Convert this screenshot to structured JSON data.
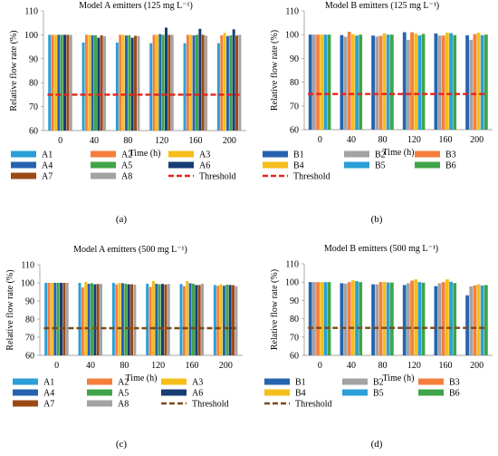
{
  "chart_data": [
    {
      "type": "bar",
      "panel_label": "(a)",
      "title": "Model A emitters (125 mg L⁻¹)",
      "xlabel": "Time (h)",
      "ylabel": "Relative flow rate (%)",
      "ylim": [
        60,
        110
      ],
      "yticks": [
        60,
        70,
        80,
        90,
        100,
        110
      ],
      "categories": [
        "0",
        "40",
        "80",
        "120",
        "160",
        "200"
      ],
      "threshold": {
        "name": "Threshold",
        "value": 75,
        "color": "#e8231b"
      },
      "series": [
        {
          "name": "A1",
          "color": "#2a9fd8",
          "values": [
            100,
            96.8,
            96.8,
            96.5,
            96.5,
            96.5
          ]
        },
        {
          "name": "A2",
          "color": "#f47f3c",
          "values": [
            100,
            100,
            100,
            100,
            100,
            99.8
          ]
        },
        {
          "name": "A3",
          "color": "#f6be1a",
          "values": [
            100,
            100,
            100,
            100,
            100,
            100.8
          ]
        },
        {
          "name": "A4",
          "color": "#2563b0",
          "values": [
            100,
            99.8,
            99.7,
            100.3,
            99.8,
            99.5
          ]
        },
        {
          "name": "A5",
          "color": "#40a548",
          "values": [
            100,
            99.8,
            99.8,
            100,
            100,
            99.8
          ]
        },
        {
          "name": "A6",
          "color": "#173c74",
          "values": [
            100,
            98.8,
            98.8,
            103,
            102.5,
            102.3
          ]
        },
        {
          "name": "A7",
          "color": "#9c4a15",
          "values": [
            100,
            99.8,
            99.6,
            100,
            100,
            99.7
          ]
        },
        {
          "name": "A8",
          "color": "#a3a3a3",
          "values": [
            100,
            99.4,
            99.5,
            100,
            99.6,
            100
          ]
        }
      ]
    },
    {
      "type": "bar",
      "panel_label": "(b)",
      "title": "Model B emitters (125 mg L⁻¹)",
      "xlabel": "Time (h)",
      "ylabel": "Relative flow rate (%)",
      "ylim": [
        60,
        110
      ],
      "yticks": [
        60,
        70,
        80,
        90,
        100,
        110
      ],
      "categories": [
        "0",
        "40",
        "80",
        "120",
        "160",
        "200"
      ],
      "threshold": {
        "name": "Threshold",
        "value": 75,
        "color": "#e8231b"
      },
      "series": [
        {
          "name": "B1",
          "color": "#2563b0",
          "values": [
            100,
            99.8,
            99.6,
            101,
            100.5,
            99.7
          ]
        },
        {
          "name": "B2",
          "color": "#a3a3a3",
          "values": [
            100,
            99.1,
            99.2,
            97.8,
            99.6,
            97.8
          ]
        },
        {
          "name": "B3",
          "color": "#f47f3c",
          "values": [
            100,
            101.2,
            99.5,
            101,
            99.6,
            100.2
          ]
        },
        {
          "name": "B4",
          "color": "#f6be1a",
          "values": [
            100,
            100.2,
            100.5,
            100.4,
            100.8,
            100.8
          ]
        },
        {
          "name": "B5",
          "color": "#2a9fd8",
          "values": [
            100,
            99.6,
            100,
            99.7,
            100.6,
            99.8
          ]
        },
        {
          "name": "B6",
          "color": "#40a548",
          "values": [
            100,
            100,
            100,
            100.3,
            99.8,
            100
          ]
        }
      ]
    },
    {
      "type": "bar",
      "panel_label": "(c)",
      "title": "Model A emitters (500 mg L⁻¹)",
      "xlabel": "Time (h)",
      "ylabel": "Relative flow rate (%)",
      "ylim": [
        60,
        110
      ],
      "yticks": [
        60,
        70,
        80,
        90,
        100,
        110
      ],
      "categories": [
        "0",
        "40",
        "80",
        "120",
        "160",
        "200"
      ],
      "threshold": {
        "name": "Threshold",
        "value": 75,
        "color": "#7a4a18"
      },
      "series": [
        {
          "name": "A1",
          "color": "#2a9fd8",
          "values": [
            100,
            100,
            100,
            99.5,
            99.4,
            98.8
          ]
        },
        {
          "name": "A2",
          "color": "#f47f3c",
          "values": [
            100,
            97.5,
            99.2,
            97.8,
            98.2,
            98.4
          ]
        },
        {
          "name": "A3",
          "color": "#f6be1a",
          "values": [
            100,
            100.5,
            100,
            101,
            101,
            99.2
          ]
        },
        {
          "name": "A4",
          "color": "#2563b0",
          "values": [
            100,
            99.5,
            99.8,
            99.5,
            99.8,
            98.4
          ]
        },
        {
          "name": "A5",
          "color": "#40a548",
          "values": [
            100,
            99.8,
            99.5,
            99.2,
            99.5,
            99
          ]
        },
        {
          "name": "A6",
          "color": "#173c74",
          "values": [
            100,
            99.2,
            99.2,
            99.4,
            98.8,
            98.8
          ]
        },
        {
          "name": "A7",
          "color": "#9c4a15",
          "values": [
            100,
            99.4,
            99.2,
            99.1,
            98.8,
            98.7
          ]
        },
        {
          "name": "A8",
          "color": "#a3a3a3",
          "values": [
            100,
            99.4,
            99,
            99.4,
            99.5,
            98.2
          ]
        }
      ]
    },
    {
      "type": "bar",
      "panel_label": "(d)",
      "title": "Model B emitters (500 mg L⁻¹)",
      "xlabel": "Time (h)",
      "ylabel": "Relative flow rate (%)",
      "ylim": [
        60,
        110
      ],
      "yticks": [
        60,
        70,
        80,
        90,
        100,
        110
      ],
      "categories": [
        "0",
        "40",
        "80",
        "120",
        "160",
        "200"
      ],
      "threshold": {
        "name": "Threshold",
        "value": 75,
        "color": "#7a4a18"
      },
      "series": [
        {
          "name": "B1",
          "color": "#2563b0",
          "values": [
            100,
            99.4,
            98.8,
            98.4,
            97.8,
            92.8
          ]
        },
        {
          "name": "B2",
          "color": "#a3a3a3",
          "values": [
            100,
            99.2,
            98.8,
            99.4,
            99.4,
            97.6
          ]
        },
        {
          "name": "B3",
          "color": "#f47f3c",
          "values": [
            100,
            100,
            100,
            100.8,
            100,
            98.2
          ]
        },
        {
          "name": "B4",
          "color": "#f6be1a",
          "values": [
            100,
            101,
            100.2,
            101.5,
            101.5,
            98.8
          ]
        },
        {
          "name": "B5",
          "color": "#2a9fd8",
          "values": [
            100,
            100.5,
            99.8,
            100,
            100.2,
            98.2
          ]
        },
        {
          "name": "B6",
          "color": "#40a548",
          "values": [
            100,
            100,
            99.8,
            99.7,
            99.5,
            98.4
          ]
        }
      ]
    }
  ]
}
